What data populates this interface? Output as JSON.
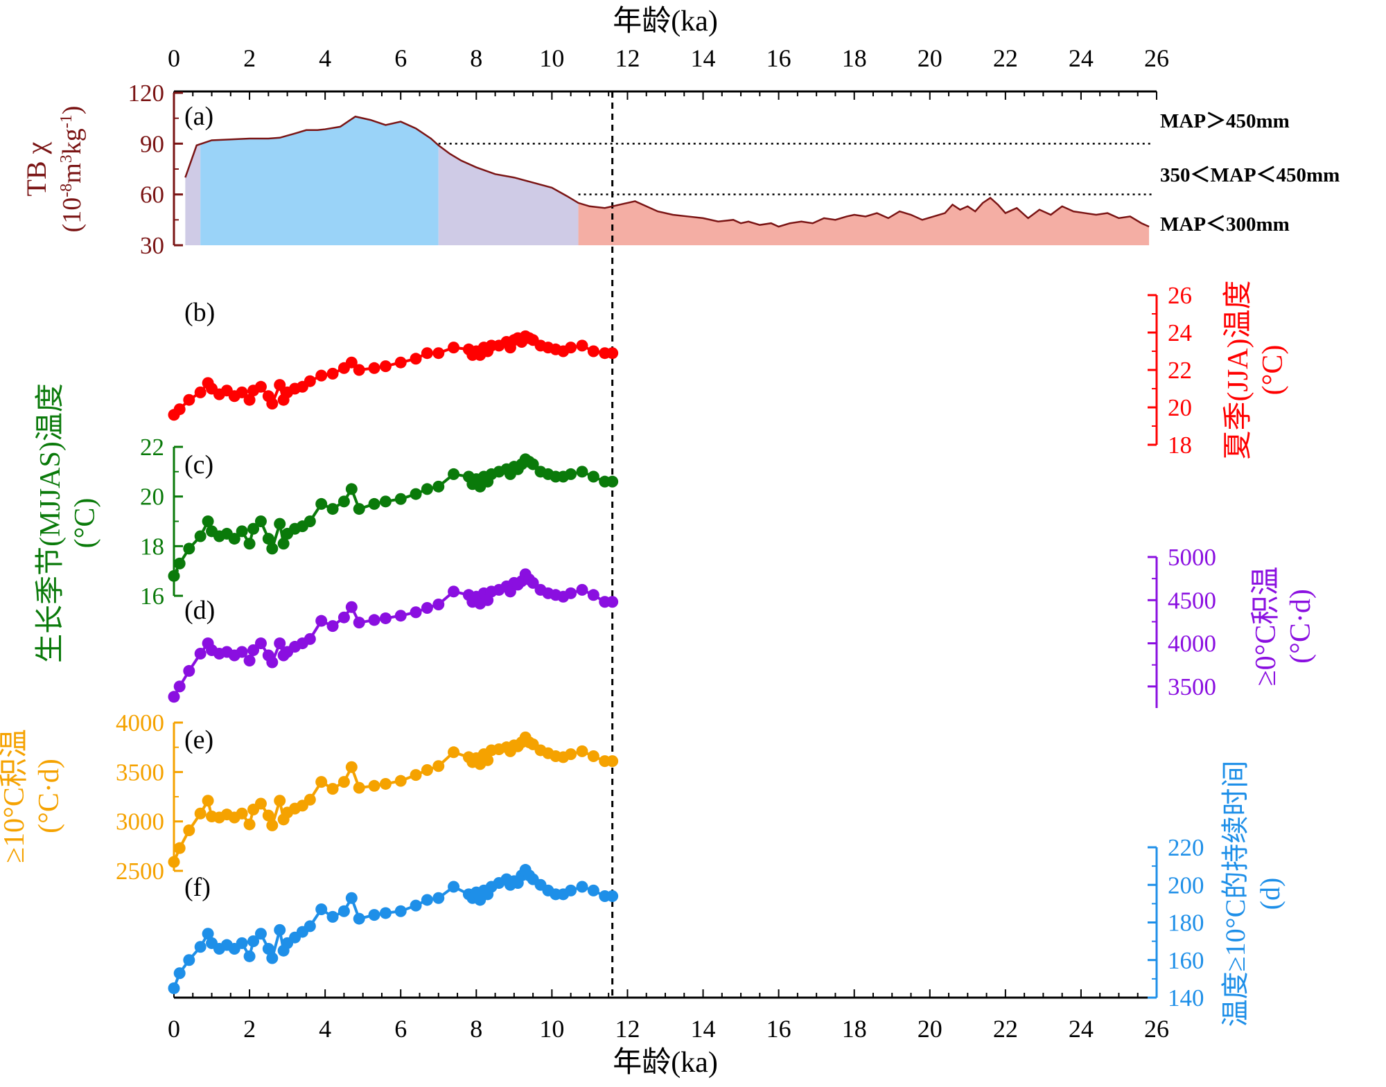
{
  "chart_data": {
    "type": "line",
    "xaxis": {
      "label": "年龄(ka)",
      "range": [
        0,
        26
      ],
      "ticks": [
        "0",
        "2",
        "4",
        "6",
        "8",
        "10",
        "12",
        "14",
        "16",
        "18",
        "20",
        "22",
        "24",
        "26"
      ]
    },
    "reference_line_x": 11.6,
    "panel_labels": [
      "(a)",
      "(b)",
      "(c)",
      "(d)",
      "(e)",
      "(f)"
    ],
    "panels": [
      {
        "id": "a",
        "axis_label": [
          "TB χ",
          "(10-8m3kg-1)"
        ],
        "color": "#7a1414",
        "ylim": [
          30,
          120
        ],
        "ticks": [
          "30",
          "60",
          "90",
          "120"
        ],
        "thresholds": [
          90,
          60
        ],
        "map_labels": [
          "MAP＞450mm",
          "350＜MAP＜450mm",
          "MAP＜300mm"
        ],
        "zone_colors": [
          "#cfcbe6",
          "#9ad3f8",
          "#cfcbe6",
          "#f4aea4"
        ],
        "zone_bounds": [
          0.3,
          0.7,
          7.0,
          10.7,
          25.8
        ],
        "x": [
          0.3,
          0.6,
          1.0,
          1.5,
          2.0,
          2.5,
          2.8,
          3.2,
          3.5,
          3.8,
          4.0,
          4.4,
          4.8,
          5.2,
          5.6,
          6.0,
          6.4,
          6.8,
          7.0,
          7.3,
          7.6,
          8.0,
          8.5,
          9.0,
          9.5,
          10.0,
          10.4,
          10.7,
          11.0,
          11.4,
          11.8,
          12.2,
          12.5,
          12.8,
          13.2,
          13.6,
          14.0,
          14.4,
          14.8,
          15.0,
          15.2,
          15.5,
          15.8,
          16.0,
          16.3,
          16.6,
          16.9,
          17.2,
          17.5,
          17.8,
          18.0,
          18.3,
          18.6,
          18.9,
          19.2,
          19.5,
          19.8,
          20.1,
          20.4,
          20.6,
          20.8,
          21.0,
          21.2,
          21.4,
          21.6,
          21.8,
          22.0,
          22.3,
          22.6,
          22.9,
          23.2,
          23.5,
          23.8,
          24.1,
          24.4,
          24.7,
          25.0,
          25.3,
          25.6,
          25.8
        ],
        "values": [
          70,
          89,
          92,
          92.5,
          93,
          93,
          93.5,
          96,
          98,
          98,
          98.5,
          100,
          106,
          104,
          101,
          103,
          99,
          93,
          89,
          84,
          80,
          76,
          72,
          70,
          67,
          64,
          59,
          55,
          53,
          52,
          54,
          56,
          53,
          50,
          48,
          47,
          46,
          44,
          45,
          43,
          44,
          42,
          43,
          41,
          43,
          44,
          43,
          46,
          45,
          47,
          48,
          47,
          49,
          46,
          50,
          48,
          45,
          47,
          49,
          54,
          51,
          53,
          50,
          55,
          58,
          54,
          49,
          52,
          46,
          51,
          48,
          53,
          50,
          49,
          48,
          49,
          46,
          47,
          43,
          41
        ]
      },
      {
        "id": "b",
        "axis_label": [
          "夏季(JJA)温度",
          "(°C)"
        ],
        "color": "#ff0000",
        "ylim": [
          18,
          26
        ],
        "ticks": [
          "18",
          "20",
          "22",
          "24",
          "26"
        ],
        "x": [
          0.0,
          0.15,
          0.4,
          0.7,
          0.9,
          1.0,
          1.2,
          1.4,
          1.6,
          1.8,
          2.0,
          2.1,
          2.3,
          2.5,
          2.6,
          2.8,
          2.9,
          3.0,
          3.2,
          3.4,
          3.6,
          3.9,
          4.2,
          4.5,
          4.7,
          4.9,
          5.3,
          5.6,
          6.0,
          6.4,
          6.7,
          7.0,
          7.4,
          7.8,
          7.9,
          8.0,
          8.1,
          8.2,
          8.3,
          8.4,
          8.6,
          8.8,
          8.9,
          9.0,
          9.1,
          9.2,
          9.3,
          9.4,
          9.5,
          9.7,
          9.9,
          10.1,
          10.3,
          10.5,
          10.8,
          11.1,
          11.4,
          11.6
        ],
        "values": [
          19.6,
          19.9,
          20.4,
          20.8,
          21.3,
          21.0,
          20.7,
          20.9,
          20.6,
          20.8,
          20.4,
          20.9,
          21.1,
          20.6,
          20.2,
          21.2,
          20.4,
          20.8,
          21.0,
          21.1,
          21.4,
          21.7,
          21.8,
          22.1,
          22.4,
          22.0,
          22.1,
          22.2,
          22.4,
          22.6,
          22.9,
          22.9,
          23.2,
          23.1,
          22.8,
          23.0,
          22.8,
          23.2,
          23.0,
          23.3,
          23.3,
          23.5,
          23.2,
          23.6,
          23.7,
          23.5,
          23.8,
          23.7,
          23.6,
          23.3,
          23.2,
          23.1,
          23.0,
          23.2,
          23.3,
          23.0,
          22.9,
          22.9
        ]
      },
      {
        "id": "c",
        "axis_label": [
          "生长季节(MJJAS)温度",
          "(°C)"
        ],
        "color": "#0a7a0a",
        "ylim": [
          16,
          22
        ],
        "ticks": [
          "16",
          "18",
          "20",
          "22"
        ],
        "x": [
          0.0,
          0.15,
          0.4,
          0.7,
          0.9,
          1.0,
          1.2,
          1.4,
          1.6,
          1.8,
          2.0,
          2.1,
          2.3,
          2.5,
          2.6,
          2.8,
          2.9,
          3.0,
          3.2,
          3.4,
          3.6,
          3.9,
          4.2,
          4.5,
          4.7,
          4.9,
          5.3,
          5.6,
          6.0,
          6.4,
          6.7,
          7.0,
          7.4,
          7.8,
          7.9,
          8.0,
          8.1,
          8.2,
          8.3,
          8.4,
          8.6,
          8.8,
          8.9,
          9.0,
          9.1,
          9.2,
          9.3,
          9.4,
          9.5,
          9.7,
          9.9,
          10.1,
          10.3,
          10.5,
          10.8,
          11.1,
          11.4,
          11.6
        ],
        "values": [
          16.8,
          17.3,
          17.9,
          18.4,
          19.0,
          18.6,
          18.4,
          18.5,
          18.3,
          18.6,
          18.1,
          18.7,
          19.0,
          18.3,
          17.9,
          18.9,
          18.1,
          18.5,
          18.7,
          18.8,
          19.0,
          19.7,
          19.5,
          19.8,
          20.3,
          19.5,
          19.7,
          19.8,
          19.9,
          20.1,
          20.3,
          20.4,
          20.9,
          20.8,
          20.5,
          20.7,
          20.4,
          20.8,
          20.6,
          20.9,
          21.0,
          21.1,
          20.9,
          21.2,
          21.1,
          21.3,
          21.5,
          21.4,
          21.3,
          21.0,
          20.9,
          20.8,
          20.8,
          20.9,
          21.0,
          20.8,
          20.6,
          20.6
        ]
      },
      {
        "id": "d",
        "axis_label": [
          "≥0°C积温",
          "(°C·d)"
        ],
        "color": "#8a0fe0",
        "ylim": [
          3250,
          5000
        ],
        "ticks": [
          "3500",
          "4000",
          "4500",
          "5000"
        ],
        "x": [
          0.0,
          0.15,
          0.4,
          0.7,
          0.9,
          1.0,
          1.2,
          1.4,
          1.6,
          1.8,
          2.0,
          2.1,
          2.3,
          2.5,
          2.6,
          2.8,
          2.9,
          3.0,
          3.2,
          3.4,
          3.6,
          3.9,
          4.2,
          4.5,
          4.7,
          4.9,
          5.3,
          5.6,
          6.0,
          6.4,
          6.7,
          7.0,
          7.4,
          7.8,
          7.9,
          8.0,
          8.1,
          8.2,
          8.3,
          8.4,
          8.6,
          8.8,
          8.9,
          9.0,
          9.1,
          9.2,
          9.3,
          9.4,
          9.5,
          9.7,
          9.9,
          10.1,
          10.3,
          10.5,
          10.8,
          11.1,
          11.4,
          11.6
        ],
        "values": [
          3380,
          3500,
          3680,
          3880,
          4000,
          3920,
          3880,
          3900,
          3860,
          3900,
          3800,
          3920,
          4000,
          3860,
          3780,
          4000,
          3860,
          3900,
          3960,
          4000,
          4050,
          4260,
          4200,
          4300,
          4420,
          4240,
          4270,
          4290,
          4320,
          4360,
          4410,
          4450,
          4600,
          4560,
          4480,
          4540,
          4460,
          4580,
          4500,
          4600,
          4620,
          4660,
          4600,
          4700,
          4680,
          4720,
          4800,
          4740,
          4700,
          4620,
          4580,
          4560,
          4540,
          4580,
          4620,
          4560,
          4480,
          4480
        ]
      },
      {
        "id": "e",
        "axis_label": [
          "≥10°C积温",
          "(°C·d)"
        ],
        "color": "#f5a200",
        "ylim": [
          2500,
          4000
        ],
        "ticks": [
          "2500",
          "3000",
          "3500",
          "4000"
        ],
        "x": [
          0.0,
          0.15,
          0.4,
          0.7,
          0.9,
          1.0,
          1.2,
          1.4,
          1.6,
          1.8,
          2.0,
          2.1,
          2.3,
          2.5,
          2.6,
          2.8,
          2.9,
          3.0,
          3.2,
          3.4,
          3.6,
          3.9,
          4.2,
          4.5,
          4.7,
          4.9,
          5.3,
          5.6,
          6.0,
          6.4,
          6.7,
          7.0,
          7.4,
          7.8,
          7.9,
          8.0,
          8.1,
          8.2,
          8.3,
          8.4,
          8.6,
          8.8,
          8.9,
          9.0,
          9.1,
          9.2,
          9.3,
          9.4,
          9.5,
          9.7,
          9.9,
          10.1,
          10.3,
          10.5,
          10.8,
          11.1,
          11.4,
          11.6
        ],
        "values": [
          2590,
          2730,
          2910,
          3080,
          3210,
          3050,
          3040,
          3070,
          3040,
          3080,
          2970,
          3120,
          3180,
          3060,
          2960,
          3210,
          3020,
          3090,
          3130,
          3160,
          3220,
          3400,
          3330,
          3400,
          3550,
          3340,
          3360,
          3380,
          3410,
          3470,
          3520,
          3560,
          3700,
          3650,
          3600,
          3640,
          3580,
          3680,
          3620,
          3720,
          3730,
          3750,
          3710,
          3770,
          3760,
          3800,
          3850,
          3800,
          3780,
          3720,
          3690,
          3660,
          3650,
          3680,
          3710,
          3660,
          3610,
          3610
        ]
      },
      {
        "id": "f",
        "axis_label": [
          "温度≥10°C的持续时间",
          "(d)"
        ],
        "color": "#1e8fe8",
        "ylim": [
          140,
          220
        ],
        "ticks": [
          "140",
          "160",
          "180",
          "200",
          "220"
        ],
        "x": [
          0.0,
          0.15,
          0.4,
          0.7,
          0.9,
          1.0,
          1.2,
          1.4,
          1.6,
          1.8,
          2.0,
          2.1,
          2.3,
          2.5,
          2.6,
          2.8,
          2.9,
          3.0,
          3.2,
          3.4,
          3.6,
          3.9,
          4.2,
          4.5,
          4.7,
          4.9,
          5.3,
          5.6,
          6.0,
          6.4,
          6.7,
          7.0,
          7.4,
          7.8,
          7.9,
          8.0,
          8.1,
          8.2,
          8.3,
          8.4,
          8.6,
          8.8,
          8.9,
          9.0,
          9.1,
          9.2,
          9.3,
          9.4,
          9.5,
          9.7,
          9.9,
          10.1,
          10.3,
          10.5,
          10.8,
          11.1,
          11.4,
          11.6
        ],
        "values": [
          145,
          153,
          160,
          167,
          174,
          169,
          166,
          168,
          166,
          169,
          162,
          170,
          174,
          166,
          161,
          176,
          165,
          169,
          172,
          175,
          178,
          187,
          183,
          186,
          193,
          182,
          184,
          185,
          186,
          189,
          192,
          193,
          199,
          195,
          193,
          196,
          192,
          197,
          195,
          199,
          201,
          203,
          200,
          202,
          201,
          205,
          208,
          205,
          203,
          200,
          197,
          195,
          195,
          197,
          199,
          197,
          194,
          194
        ]
      }
    ]
  }
}
